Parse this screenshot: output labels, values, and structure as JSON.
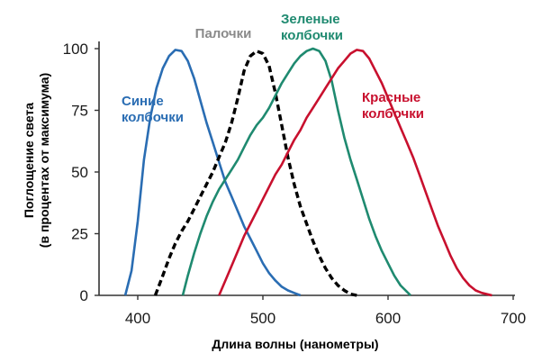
{
  "chart_data": {
    "type": "line",
    "xlabel": "Длина волны (нанометры)",
    "ylabel": [
      "Поглощение  света",
      "(в процентах от максимума)"
    ],
    "xlim": [
      370,
      700
    ],
    "ylim": [
      0,
      100
    ],
    "x_ticks": [
      400,
      500,
      600,
      700
    ],
    "y_ticks": [
      0,
      25,
      50,
      75,
      100
    ],
    "grid": false,
    "series": [
      {
        "name": [
          "Синие",
          "колбочки"
        ],
        "color": "#2a6db3",
        "dash": false,
        "points": [
          [
            390,
            0
          ],
          [
            395,
            10
          ],
          [
            400,
            30
          ],
          [
            405,
            55
          ],
          [
            410,
            72
          ],
          [
            415,
            84
          ],
          [
            420,
            92
          ],
          [
            425,
            97
          ],
          [
            430,
            99.5
          ],
          [
            435,
            99
          ],
          [
            440,
            95
          ],
          [
            445,
            88
          ],
          [
            450,
            79
          ],
          [
            455,
            70
          ],
          [
            460,
            62
          ],
          [
            465,
            54
          ],
          [
            470,
            46
          ],
          [
            475,
            40
          ],
          [
            480,
            34
          ],
          [
            485,
            28
          ],
          [
            490,
            23
          ],
          [
            495,
            18
          ],
          [
            500,
            13
          ],
          [
            505,
            9
          ],
          [
            510,
            6
          ],
          [
            515,
            3.5
          ],
          [
            520,
            2
          ],
          [
            525,
            1
          ],
          [
            530,
            0
          ]
        ]
      },
      {
        "name": [
          "Палочки"
        ],
        "color": "#000000",
        "dash": true,
        "points": [
          [
            414,
            0
          ],
          [
            420,
            8
          ],
          [
            425,
            15
          ],
          [
            430,
            21
          ],
          [
            435,
            26
          ],
          [
            440,
            30
          ],
          [
            445,
            35
          ],
          [
            450,
            40
          ],
          [
            455,
            45
          ],
          [
            460,
            50
          ],
          [
            465,
            56
          ],
          [
            470,
            62
          ],
          [
            475,
            70
          ],
          [
            480,
            80
          ],
          [
            485,
            91
          ],
          [
            490,
            97
          ],
          [
            495,
            99
          ],
          [
            500,
            98
          ],
          [
            505,
            93
          ],
          [
            510,
            82
          ],
          [
            515,
            69
          ],
          [
            520,
            56
          ],
          [
            525,
            45
          ],
          [
            530,
            36
          ],
          [
            535,
            29
          ],
          [
            540,
            22
          ],
          [
            545,
            16
          ],
          [
            550,
            11
          ],
          [
            555,
            7
          ],
          [
            560,
            4
          ],
          [
            565,
            2
          ],
          [
            570,
            0.5
          ],
          [
            575,
            0
          ]
        ]
      },
      {
        "name": [
          "Зеленые",
          "колбочки"
        ],
        "color": "#1f8a70",
        "dash": false,
        "points": [
          [
            436,
            0
          ],
          [
            440,
            8
          ],
          [
            445,
            17
          ],
          [
            450,
            25
          ],
          [
            455,
            32
          ],
          [
            460,
            38
          ],
          [
            465,
            43
          ],
          [
            470,
            47
          ],
          [
            475,
            51
          ],
          [
            480,
            55
          ],
          [
            485,
            60
          ],
          [
            490,
            65
          ],
          [
            495,
            69
          ],
          [
            500,
            72
          ],
          [
            505,
            76
          ],
          [
            510,
            81
          ],
          [
            515,
            86
          ],
          [
            520,
            90
          ],
          [
            525,
            94
          ],
          [
            530,
            97
          ],
          [
            535,
            99
          ],
          [
            540,
            100
          ],
          [
            545,
            99
          ],
          [
            550,
            95
          ],
          [
            555,
            87
          ],
          [
            560,
            75
          ],
          [
            565,
            64
          ],
          [
            570,
            55
          ],
          [
            575,
            47
          ],
          [
            580,
            39
          ],
          [
            585,
            31
          ],
          [
            590,
            24
          ],
          [
            595,
            18
          ],
          [
            600,
            13
          ],
          [
            605,
            8
          ],
          [
            610,
            4
          ],
          [
            615,
            1.5
          ],
          [
            618,
            0
          ]
        ]
      },
      {
        "name": [
          "Красные",
          "колбочки"
        ],
        "color": "#c8102e",
        "dash": false,
        "points": [
          [
            465,
            0
          ],
          [
            470,
            6
          ],
          [
            475,
            12
          ],
          [
            480,
            18
          ],
          [
            485,
            24
          ],
          [
            490,
            29
          ],
          [
            495,
            34
          ],
          [
            500,
            39
          ],
          [
            505,
            44
          ],
          [
            510,
            49
          ],
          [
            515,
            53
          ],
          [
            520,
            58
          ],
          [
            525,
            63
          ],
          [
            530,
            67
          ],
          [
            535,
            72
          ],
          [
            540,
            76
          ],
          [
            545,
            80
          ],
          [
            550,
            84
          ],
          [
            555,
            88
          ],
          [
            560,
            92
          ],
          [
            565,
            95
          ],
          [
            570,
            98
          ],
          [
            575,
            99.5
          ],
          [
            580,
            99
          ],
          [
            585,
            96
          ],
          [
            590,
            91
          ],
          [
            595,
            86
          ],
          [
            600,
            80
          ],
          [
            605,
            74
          ],
          [
            610,
            68
          ],
          [
            615,
            62
          ],
          [
            620,
            56
          ],
          [
            625,
            49
          ],
          [
            630,
            42
          ],
          [
            635,
            35
          ],
          [
            640,
            28
          ],
          [
            645,
            22
          ],
          [
            650,
            16
          ],
          [
            655,
            11
          ],
          [
            660,
            7
          ],
          [
            665,
            4
          ],
          [
            670,
            2
          ],
          [
            675,
            1
          ],
          [
            683,
            0
          ]
        ]
      }
    ]
  }
}
